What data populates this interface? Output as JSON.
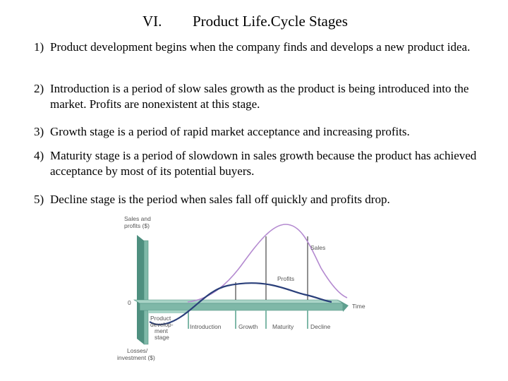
{
  "title": {
    "number": "VI.",
    "text": "Product Life.Cycle Stages"
  },
  "items": [
    {
      "n": "1)",
      "text": "Product development begins when the company finds and develops a new product idea."
    },
    {
      "n": "2)",
      "text": "Introduction is a period of slow sales growth as the product is being introduced into the market. Profits are nonexistent at this stage."
    },
    {
      "n": "3)",
      "text": "Growth stage is a period of rapid market acceptance and increasing profits."
    },
    {
      "n": "4)",
      "text": "Maturity stage is a period of slowdown in sales growth because the product has achieved acceptance by most of its potential buyers."
    },
    {
      "n": "5)",
      "text": "Decline stage is the period when sales fall off quickly and profits drop."
    }
  ],
  "diagram": {
    "y_top_label_1": "Sales and",
    "y_top_label_2": "profits ($)",
    "zero_label": "0",
    "sales_label": "Sales",
    "profits_label": "Profits",
    "time_label": "Time",
    "pd_label_1": "Product",
    "pd_label_2": "develop-",
    "pd_label_3": "ment",
    "pd_label_4": "stage",
    "stage_introduction": "Introduction",
    "stage_growth": "Growth",
    "stage_maturity": "Maturity",
    "stage_decline": "Decline",
    "y_bottom_label_1": "Losses/",
    "y_bottom_label_2": "investment ($)",
    "colors": {
      "axis_face": "#7fb8a8",
      "axis_edge": "#4e8f7f",
      "sales_curve": "#b48ad0",
      "profits_curve": "#2a3f7a"
    }
  }
}
